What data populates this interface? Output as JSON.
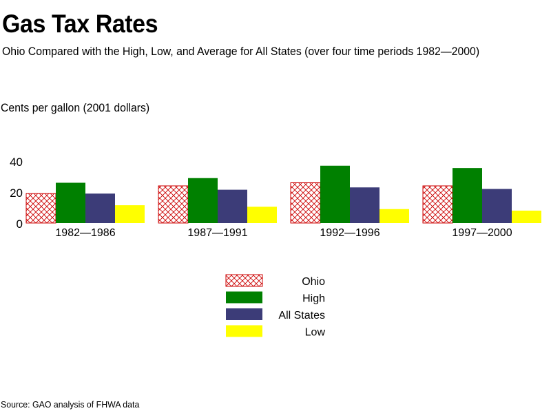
{
  "title": "Gas Tax Rates",
  "subtitle": "Ohio Compared with the High, Low, and Average for All States (over four time periods 1982—2000)",
  "ylabel": "Cents per gallon (2001 dollars)",
  "source": "Source: GAO analysis of FHWA data",
  "chart_data": {
    "type": "bar",
    "title": "Gas Tax Rates",
    "ylabel": "Cents per gallon (2001 dollars)",
    "ylim": [
      0,
      40
    ],
    "yticks": [
      "0",
      "20",
      "40"
    ],
    "categories": [
      "1982—1986",
      "1987—1991",
      "1992—1996",
      "1997—2000"
    ],
    "series": [
      {
        "name": "Ohio",
        "color": "#cc0000",
        "pattern": "crosshatch",
        "values": [
          19,
          24,
          26,
          24
        ]
      },
      {
        "name": "High",
        "color": "#008000",
        "values": [
          26,
          29,
          37,
          35.5
        ]
      },
      {
        "name": "All States",
        "color": "#3c3c78",
        "values": [
          19,
          21.5,
          23,
          22
        ]
      },
      {
        "name": "Low",
        "color": "#ffff00",
        "values": [
          11.5,
          10.5,
          9,
          8
        ]
      }
    ],
    "legend_position": "bottom-center"
  }
}
